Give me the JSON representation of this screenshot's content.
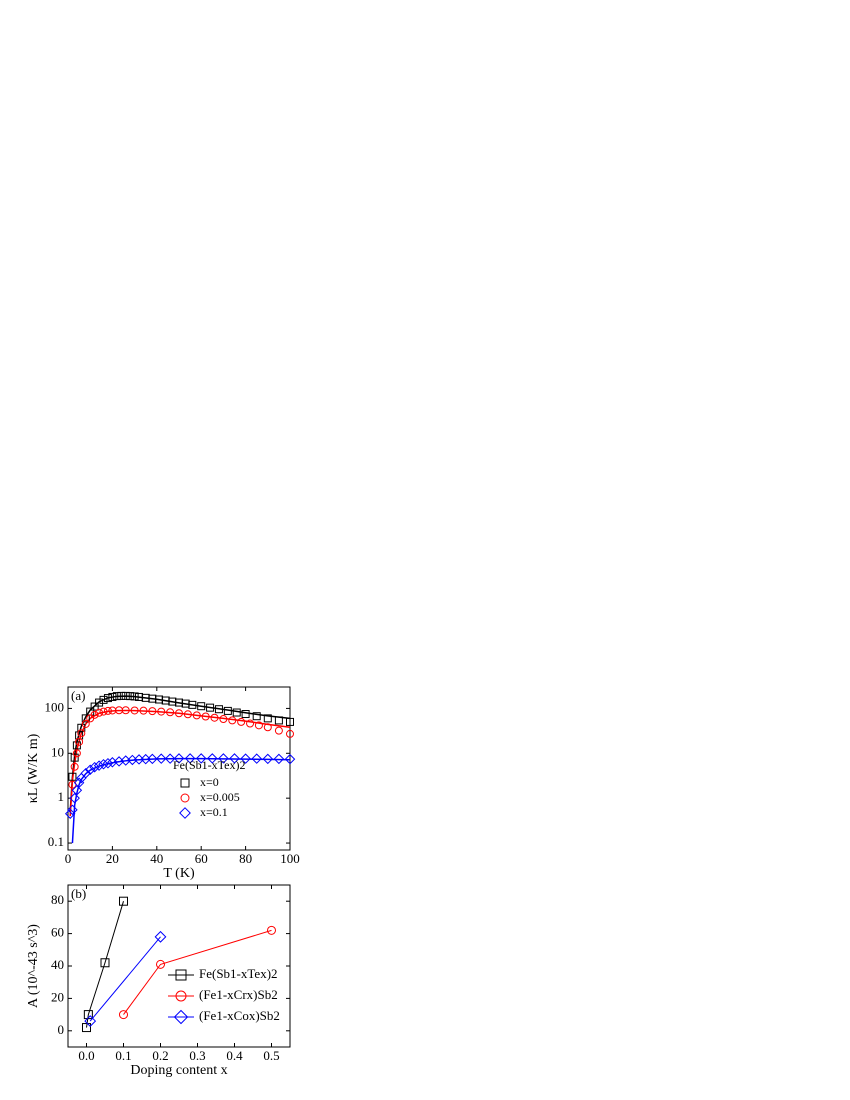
{
  "chart_data": [
    {
      "type": "scatter",
      "panel_label": "(a)",
      "xlabel": "T (K)",
      "ylabel": "κL (W/K m)",
      "log_y": true,
      "xlim": [
        0,
        100
      ],
      "xticks": [
        0,
        20,
        40,
        60,
        80,
        100
      ],
      "ylim": [
        0.07,
        300
      ],
      "yticks": [
        0.1,
        1,
        10,
        100
      ],
      "legend_title": "Fe(Sb1-xTex)2",
      "legend_position": "lower right",
      "connect": false,
      "series": [
        {
          "name": "x=0",
          "color": "#000000",
          "marker": "square",
          "x": [
            2,
            3,
            4,
            5,
            6,
            8,
            10,
            12,
            14,
            16,
            18,
            20,
            22,
            24,
            26,
            28,
            30,
            32,
            35,
            38,
            41,
            44,
            47,
            50,
            53,
            56,
            60,
            64,
            68,
            72,
            76,
            80,
            85,
            90,
            95,
            100
          ],
          "values": [
            3,
            8,
            15,
            25,
            37,
            60,
            85,
            110,
            135,
            155,
            170,
            180,
            188,
            190,
            190,
            188,
            185,
            180,
            172,
            165,
            158,
            150,
            142,
            135,
            128,
            120,
            112,
            104,
            96,
            88,
            81,
            75,
            67,
            60,
            54,
            50
          ]
        },
        {
          "name": "x=0.005",
          "color": "#ff0000",
          "marker": "circle",
          "x": [
            2,
            3,
            4,
            5,
            6,
            8,
            10,
            12,
            14,
            16,
            18,
            20,
            23,
            26,
            30,
            34,
            38,
            42,
            46,
            50,
            54,
            58,
            62,
            66,
            70,
            74,
            78,
            82,
            86,
            90,
            95,
            100
          ],
          "values": [
            2,
            5,
            10,
            18,
            28,
            45,
            60,
            72,
            80,
            85,
            88,
            90,
            91,
            91,
            90,
            89,
            87,
            85,
            82,
            78,
            74,
            70,
            66,
            62,
            58,
            54,
            50,
            46,
            42,
            38,
            32,
            27
          ]
        },
        {
          "name": "x=0.1",
          "color": "#0000ff",
          "marker": "diamond",
          "x": [
            1,
            2,
            3,
            4,
            5,
            6,
            8,
            10,
            12,
            14,
            16,
            18,
            20,
            23,
            26,
            29,
            32,
            35,
            38,
            42,
            46,
            50,
            55,
            60,
            65,
            70,
            75,
            80,
            85,
            90,
            95,
            100
          ],
          "values": [
            0.45,
            0.55,
            1,
            1.5,
            2.2,
            2.8,
            3.6,
            4.3,
            4.9,
            5.3,
            5.7,
            6,
            6.3,
            6.6,
            6.9,
            7.1,
            7.3,
            7.4,
            7.5,
            7.6,
            7.6,
            7.7,
            7.7,
            7.7,
            7.7,
            7.7,
            7.7,
            7.6,
            7.6,
            7.5,
            7.5,
            7.4
          ]
        }
      ],
      "fits": [
        {
          "color": "#000000",
          "x": [
            1,
            2,
            3,
            4,
            6,
            8,
            10,
            14,
            18,
            22,
            26,
            30,
            40,
            50,
            60,
            70,
            80,
            90,
            100
          ],
          "values": [
            0.5,
            3,
            9,
            18,
            40,
            65,
            92,
            140,
            172,
            186,
            188,
            183,
            160,
            133,
            112,
            95,
            80,
            68,
            60
          ]
        },
        {
          "color": "#ff0000",
          "x": [
            1,
            2,
            3,
            4,
            6,
            8,
            10,
            14,
            18,
            22,
            26,
            30,
            40,
            50,
            60,
            70,
            80,
            90,
            100
          ],
          "values": [
            0.4,
            2.5,
            6,
            12,
            28,
            45,
            60,
            78,
            86,
            89,
            90,
            89,
            85,
            78,
            68,
            60,
            52,
            44,
            38
          ]
        },
        {
          "color": "#0000ff",
          "x": [
            2,
            3,
            4,
            5,
            6,
            8,
            10,
            14,
            18,
            22,
            26,
            30,
            40,
            50,
            60,
            70,
            80,
            90,
            100
          ],
          "values": [
            0.1,
            0.7,
            1.3,
            2,
            2.6,
            3.5,
            4.2,
            5.2,
            5.9,
            6.4,
            6.8,
            7.1,
            7.5,
            7.6,
            7.6,
            7.5,
            7.4,
            7.3,
            7.2
          ]
        }
      ]
    },
    {
      "type": "scatter",
      "panel_label": "(b)",
      "xlabel": "Doping content x",
      "ylabel": "A (10^-43 s^3)",
      "log_y": false,
      "xlim": [
        -0.05,
        0.55
      ],
      "xticks": [
        {
          "value": 0,
          "label": "0.0"
        },
        0.1,
        0.2,
        0.3,
        0.4,
        0.5
      ],
      "ylim": [
        -10,
        90
      ],
      "yticks": [
        0,
        20,
        40,
        60,
        80
      ],
      "legend_position": "lower right",
      "connect": true,
      "series": [
        {
          "name": "Fe(Sb1-xTex)2",
          "color": "#000000",
          "marker": "square",
          "x": [
            0,
            0.005,
            0.05,
            0.1
          ],
          "values": [
            2,
            10,
            42,
            80
          ]
        },
        {
          "name": "(Fe1-xCrx)Sb2",
          "color": "#ff0000",
          "marker": "circle",
          "x": [
            0.1,
            0.2,
            0.5
          ],
          "values": [
            10,
            41,
            62
          ]
        },
        {
          "name": "(Fe1-xCox)Sb2",
          "color": "#0000ff",
          "marker": "diamond",
          "x": [
            0.01,
            0.2
          ],
          "values": [
            6,
            58
          ]
        }
      ]
    }
  ]
}
